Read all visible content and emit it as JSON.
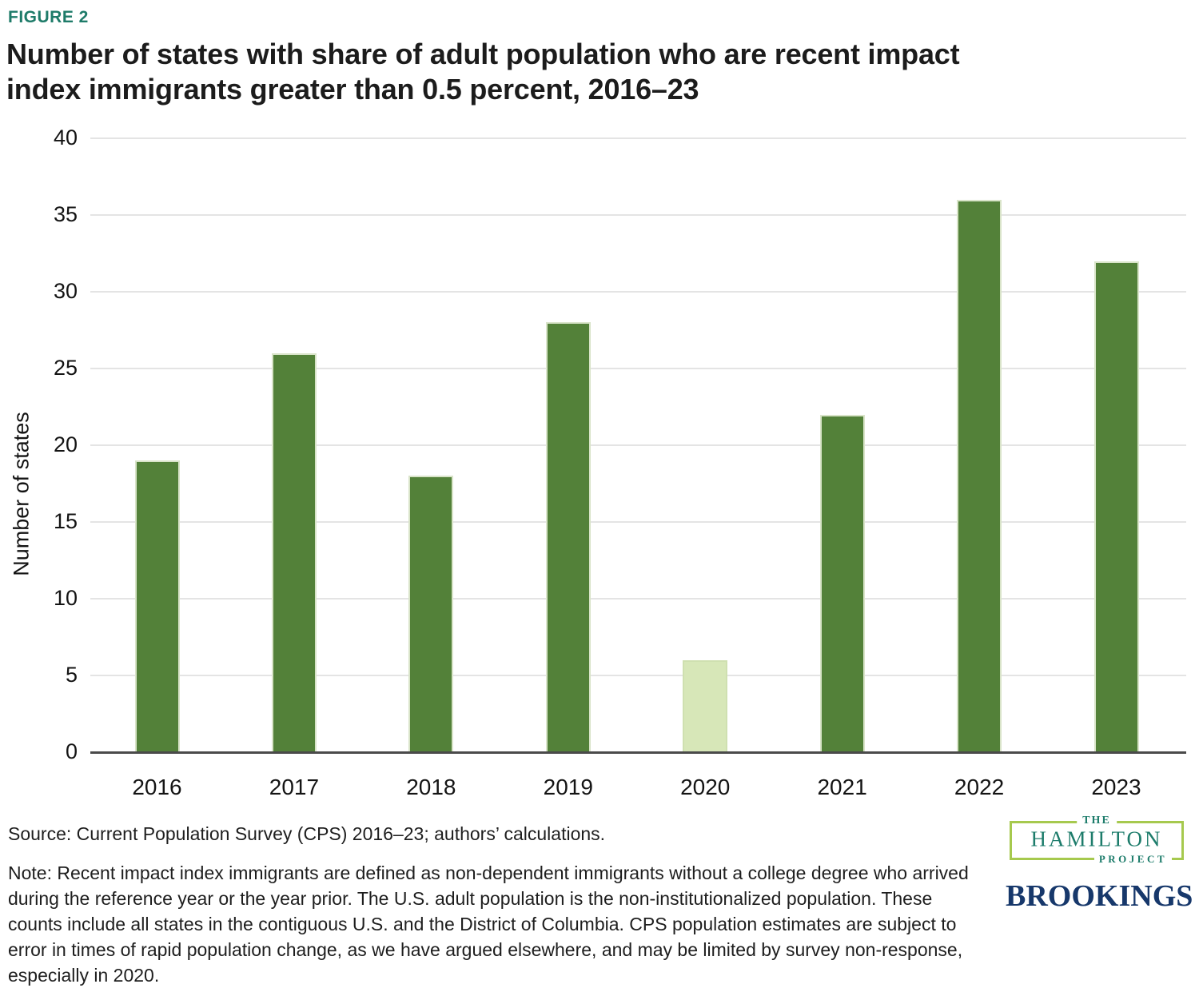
{
  "figure_label": "FIGURE 2",
  "title_lines": [
    "Number of states with share of adult population who are recent impact",
    "index immigrants greater than 0.5 percent, 2016–23"
  ],
  "chart_data": {
    "type": "bar",
    "title": "Number of states with share of adult population who are recent impact index immigrants greater than 0.5 percent, 2016–23",
    "categories": [
      "2016",
      "2017",
      "2018",
      "2019",
      "2020",
      "2021",
      "2022",
      "2023"
    ],
    "values": [
      19,
      26,
      18,
      28,
      6,
      22,
      36,
      32
    ],
    "xlabel": "",
    "ylabel": "Number of states",
    "ylim": [
      0,
      40
    ],
    "yticks": [
      0,
      5,
      10,
      15,
      20,
      25,
      30,
      35,
      40
    ],
    "grid": true,
    "gridline_color": "#E4E4E4",
    "axis_color": "#4A4A4A",
    "bar_color": "#538139",
    "highlight_color": "#D7E7B8",
    "highlight_index": 4,
    "legend": "none"
  },
  "source": "Source: Current Population Survey (CPS) 2016–23; authors’ calculations.",
  "note": "Note: Recent impact index immigrants are defined as non-dependent immigrants without a college degree who arrived during the reference year or the year prior. The U.S. adult population is the non-institutionalized population. These counts include all states in the contiguous U.S. and the District of Columbia. CPS population estimates are subject to error in times of rapid population change, as we have argued elsewhere, and may be limited by survey non-response, especially in 2020.",
  "logos": {
    "hamilton": {
      "the": "THE",
      "name": "HAMILTON",
      "project": "PROJECT",
      "teal": "#1D7C6B",
      "border_green": "#A6C94E"
    },
    "brookings": {
      "name": "BROOKINGS",
      "navy": "#17386B"
    }
  },
  "colors": {
    "figure_label_teal": "#1E7B69",
    "title_text": "#1C1C1C",
    "body_text": "#1E1E1E"
  }
}
